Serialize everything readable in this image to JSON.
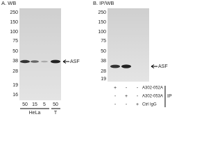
{
  "panels": [
    {
      "title": "A. WB",
      "markers": [
        "250",
        "150",
        "100",
        "75",
        "50",
        "38",
        "28",
        "19",
        "16"
      ],
      "target": "ASF",
      "lanes": [
        "50",
        "15",
        "5",
        "50"
      ],
      "groups": [
        "HeLa",
        "T"
      ]
    },
    {
      "title": "B. IP/WB",
      "markers": [
        "250",
        "150",
        "100",
        "75",
        "50",
        "38",
        "28",
        "19"
      ],
      "target": "ASF",
      "rows": [
        {
          "label": "A302-052A",
          "cells": [
            "+",
            "-",
            "-"
          ]
        },
        {
          "label": "A302-053A",
          "cells": [
            "-",
            "+",
            "-"
          ]
        },
        {
          "label": "Ctrl IgG",
          "cells": [
            "-",
            "-",
            "+"
          ]
        }
      ],
      "group": "IP"
    }
  ]
}
